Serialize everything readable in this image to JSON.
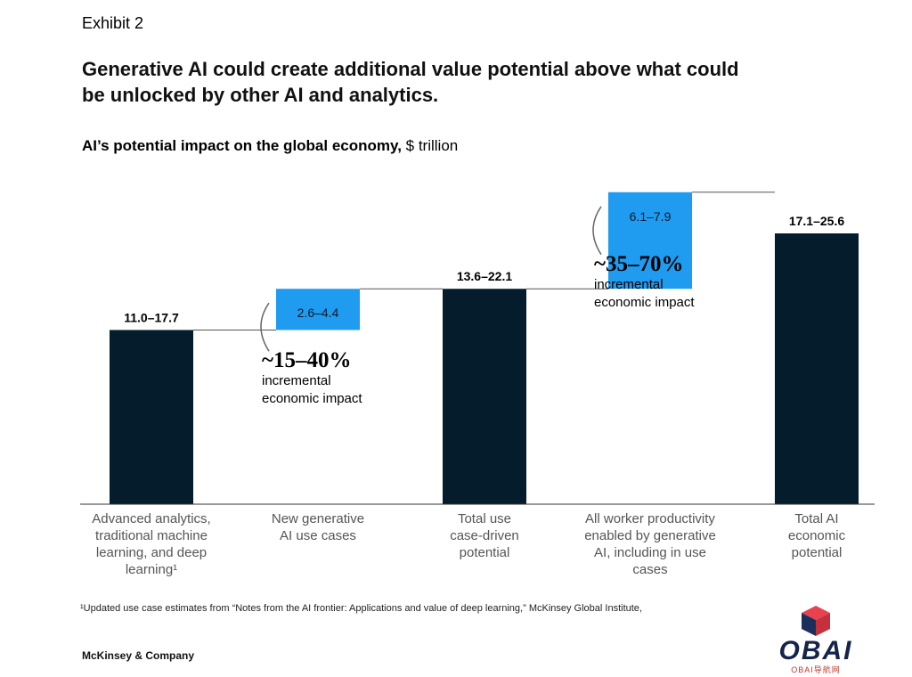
{
  "header": {
    "exhibit": "Exhibit 2",
    "title": "Generative AI could create additional value potential above what could be unlocked by other AI and analytics.",
    "subtitle_bold": "AI’s potential impact on the global economy,",
    "subtitle_unit": " $ trillion"
  },
  "chart_data": {
    "type": "bar",
    "subtype": "waterfall",
    "unit": "$ trillion",
    "categories": [
      [
        "Advanced analytics,",
        "traditional machine",
        "learning, and deep",
        "learning¹"
      ],
      [
        "New generative",
        "AI use cases"
      ],
      [
        "Total use",
        "case-driven",
        "potential"
      ],
      [
        "All worker productivity",
        "enabled by generative",
        "AI, including in use",
        "cases"
      ],
      [
        "Total AI",
        "economic",
        "potential"
      ]
    ],
    "values": [
      {
        "label": "11.0–17.7",
        "low": 11.0,
        "high": 17.7,
        "kind": "total"
      },
      {
        "label": "2.6–4.4",
        "low": 2.6,
        "high": 4.4,
        "kind": "increment"
      },
      {
        "label": "13.6–22.1",
        "low": 13.6,
        "high": 22.1,
        "kind": "total"
      },
      {
        "label": "6.1–7.9",
        "low": 6.1,
        "high": 7.9,
        "kind": "increment"
      },
      {
        "label": "17.1–25.6",
        "low": 17.1,
        "high": 25.6,
        "kind": "total"
      }
    ],
    "annotations": [
      {
        "pct": "~15–40%",
        "line1": "incremental",
        "line2": "economic impact"
      },
      {
        "pct": "~35–70%",
        "line1": "incremental",
        "line2": "economic impact"
      }
    ],
    "colors": {
      "total": "#051c2c",
      "increment": "#1f9bf0",
      "connector": "#555555",
      "axis": "#333333"
    },
    "grid": false,
    "legend": "none"
  },
  "footer": {
    "footnote": "¹Updated use case estimates from “Notes from the AI frontier: Applications and value of deep learning,” McKinsey Global Institute,",
    "brand": "McKinsey & Company",
    "watermark": "OBAI",
    "watermark_sub": "OBAI导航网"
  }
}
